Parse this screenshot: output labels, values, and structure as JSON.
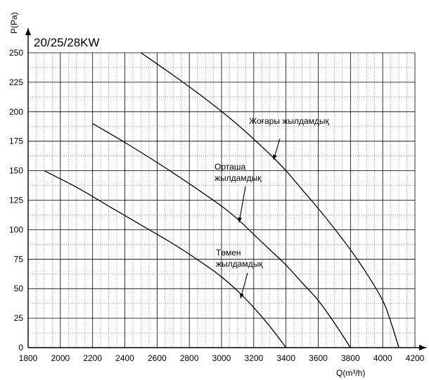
{
  "chart_data": {
    "type": "line",
    "title": "20/25/28KW",
    "xlabel": "Q(m³/h)",
    "ylabel": "P(Pa)",
    "xlim": [
      1800,
      4200
    ],
    "ylim": [
      0,
      250
    ],
    "x_ticks": [
      1800,
      2000,
      2200,
      2400,
      2600,
      2800,
      3000,
      3200,
      3400,
      3600,
      3800,
      4000,
      4200
    ],
    "y_ticks": [
      0,
      25,
      50,
      75,
      100,
      125,
      150,
      175,
      200,
      225,
      250
    ],
    "x_tick_labels": [
      "1800",
      "2000",
      "2200",
      "2400",
      "2600",
      "2800",
      "3000",
      "3200",
      "3400",
      "3600",
      "3800",
      "4000",
      "4200"
    ],
    "y_tick_labels": [
      "0",
      "25",
      "50",
      "75",
      "100",
      "125",
      "150",
      "175",
      "200",
      "225",
      "250"
    ],
    "grid": true,
    "series": [
      {
        "name": "Жоғары жылдамдық",
        "x": [
          2500,
          2700,
          2900,
          3100,
          3300,
          3400,
          3500,
          3600,
          3700,
          3800,
          3900,
          4000,
          4050,
          4100
        ],
        "y": [
          250,
          231,
          211,
          189,
          164,
          150,
          134,
          118,
          101,
          83,
          63,
          40,
          22,
          0
        ]
      },
      {
        "name": "Орташа жылдамдық",
        "x": [
          2200,
          2400,
          2600,
          2800,
          3000,
          3100,
          3200,
          3300,
          3400,
          3500,
          3600,
          3700,
          3800
        ],
        "y": [
          190,
          174,
          157,
          139,
          120,
          109,
          96,
          83,
          70,
          55,
          40,
          21,
          0
        ]
      },
      {
        "name": "Төмен жылдамдық",
        "x": [
          1900,
          2100,
          2300,
          2500,
          2700,
          2900,
          3000,
          3100,
          3200,
          3300,
          3400
        ],
        "y": [
          150,
          136,
          120,
          104,
          88,
          70,
          60,
          48,
          34,
          18,
          0
        ]
      }
    ],
    "annotations": [
      {
        "lines": [
          "Жоғары жылдамдық"
        ],
        "series": "Жоғары жылдамдық"
      },
      {
        "lines": [
          "Орташа",
          "жылдамдық"
        ],
        "series": "Орташа жылдамдық"
      },
      {
        "lines": [
          "Төмен",
          "жылдамдық"
        ],
        "series": "Төмен жылдамдық"
      }
    ]
  }
}
